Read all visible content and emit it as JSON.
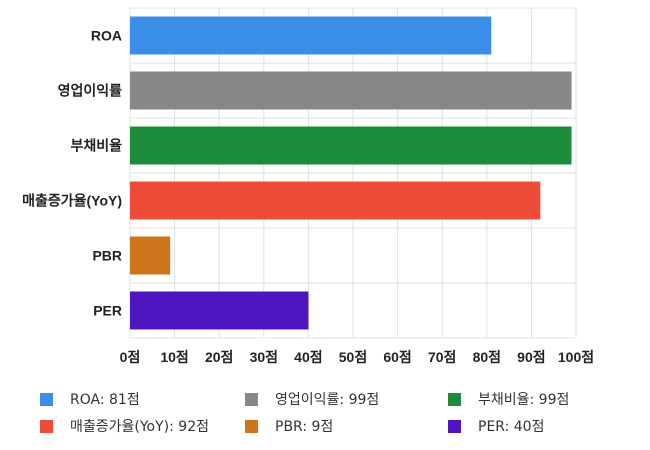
{
  "chart_data": {
    "type": "bar",
    "orientation": "horizontal",
    "categories": [
      "ROA",
      "영업이익률",
      "부채비율",
      "매출증가율(YoY)",
      "PBR",
      "PER"
    ],
    "values": [
      81,
      99,
      99,
      92,
      9,
      40
    ],
    "colors": [
      "#3b8ee8",
      "#878787",
      "#1b8c3b",
      "#ee4c38",
      "#ce741c",
      "#4e16bf"
    ],
    "xlim": [
      0,
      100
    ],
    "xticks": [
      "0점",
      "10점",
      "20점",
      "30점",
      "40점",
      "50점",
      "60점",
      "70점",
      "80점",
      "90점",
      "100점"
    ],
    "grid": true,
    "legend_position": "bottom",
    "legend": [
      "ROA: 81점",
      "영업이익률: 99점",
      "부채비율: 99점",
      "매출증가율(YoY): 92점",
      "PBR: 9점",
      "PER: 40점"
    ]
  }
}
